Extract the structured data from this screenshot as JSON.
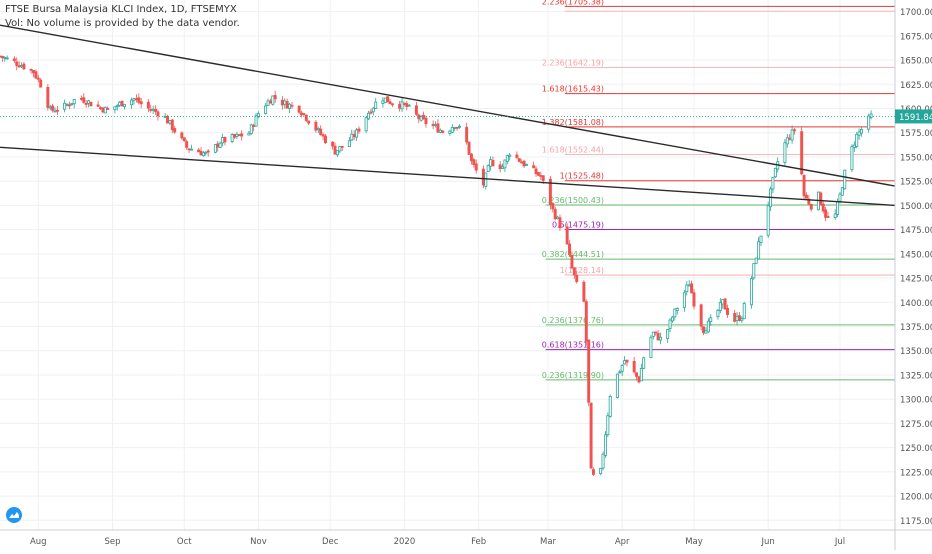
{
  "legend": {
    "title": "FTSE Bursa Malaysia KLCI Index, 1D, FTSEMYX",
    "volume_note": "Vol: No volume is provided by the data vendor."
  },
  "colors": {
    "up": "#26a69a",
    "down": "#ef5350",
    "fib_red": "#e53935",
    "fib_pink": "#f4a3a8",
    "fib_green": "#66bb6a",
    "fib_purple": "#9c27b0",
    "trendline": "#2b2b2b",
    "price_tag": "#26a69a"
  },
  "chart_data": {
    "type": "candlestick",
    "y_axis": {
      "min": 1165,
      "max": 1712,
      "ticks": [
        1175,
        1200,
        1225,
        1250,
        1275,
        1300,
        1325,
        1350,
        1375,
        1400,
        1425,
        1450,
        1475,
        1500,
        1525,
        1550,
        1575,
        1600,
        1625,
        1650,
        1675,
        1700
      ],
      "tick_labels": [
        "1175.00",
        "1200.00",
        "1225.00",
        "1250.00",
        "1275.00",
        "1300.00",
        "1325.00",
        "1350.00",
        "1375.00",
        "1400.00",
        "1425.00",
        "1450.00",
        "1475.00",
        "1500.00",
        "1525.00",
        "1550.00",
        "1575.00",
        "1600.00",
        "1625.00",
        "1650.00",
        "1675.00",
        "1700.00"
      ]
    },
    "x_axis": {
      "labels": [
        {
          "label": "Aug",
          "date": "2019-08-01"
        },
        {
          "label": "Sep",
          "date": "2019-09-01"
        },
        {
          "label": "Oct",
          "date": "2019-10-01"
        },
        {
          "label": "Nov",
          "date": "2019-11-01"
        },
        {
          "label": "Dec",
          "date": "2019-12-01"
        },
        {
          "label": "2020",
          "date": "2020-01-01"
        },
        {
          "label": "Feb",
          "date": "2020-02-01"
        },
        {
          "label": "Mar",
          "date": "2020-03-01"
        },
        {
          "label": "Apr",
          "date": "2020-04-01"
        },
        {
          "label": "May",
          "date": "2020-05-01"
        },
        {
          "label": "Jun",
          "date": "2020-06-01"
        },
        {
          "label": "Jul",
          "date": "2020-07-01"
        }
      ],
      "start_date": "2019-07-16",
      "end_date": "2020-07-24"
    },
    "grid": true,
    "current_price": {
      "value": 1591.84,
      "label": "1591.84"
    },
    "close_path": [
      {
        "date": "2019-07-16",
        "close": 1654
      },
      {
        "date": "2019-07-20",
        "close": 1650
      },
      {
        "date": "2019-07-25",
        "close": 1645
      },
      {
        "date": "2019-07-30",
        "close": 1638
      },
      {
        "date": "2019-08-02",
        "close": 1625
      },
      {
        "date": "2019-08-06",
        "close": 1598
      },
      {
        "date": "2019-08-12",
        "close": 1602
      },
      {
        "date": "2019-08-18",
        "close": 1612
      },
      {
        "date": "2019-08-24",
        "close": 1604
      },
      {
        "date": "2019-08-30",
        "close": 1598
      },
      {
        "date": "2019-09-05",
        "close": 1606
      },
      {
        "date": "2019-09-10",
        "close": 1610
      },
      {
        "date": "2019-09-16",
        "close": 1600
      },
      {
        "date": "2019-09-22",
        "close": 1594
      },
      {
        "date": "2019-09-28",
        "close": 1574
      },
      {
        "date": "2019-10-02",
        "close": 1560
      },
      {
        "date": "2019-10-07",
        "close": 1556
      },
      {
        "date": "2019-10-11",
        "close": 1552
      },
      {
        "date": "2019-10-16",
        "close": 1566
      },
      {
        "date": "2019-10-22",
        "close": 1570
      },
      {
        "date": "2019-10-28",
        "close": 1575
      },
      {
        "date": "2019-11-02",
        "close": 1600
      },
      {
        "date": "2019-11-07",
        "close": 1612
      },
      {
        "date": "2019-11-12",
        "close": 1605
      },
      {
        "date": "2019-11-18",
        "close": 1600
      },
      {
        "date": "2019-11-24",
        "close": 1582
      },
      {
        "date": "2019-11-30",
        "close": 1565
      },
      {
        "date": "2019-12-03",
        "close": 1556
      },
      {
        "date": "2019-12-07",
        "close": 1562
      },
      {
        "date": "2019-12-12",
        "close": 1575
      },
      {
        "date": "2019-12-17",
        "close": 1596
      },
      {
        "date": "2019-12-22",
        "close": 1612
      },
      {
        "date": "2019-12-27",
        "close": 1606
      },
      {
        "date": "2020-01-02",
        "close": 1602
      },
      {
        "date": "2020-01-08",
        "close": 1588
      },
      {
        "date": "2020-01-13",
        "close": 1582
      },
      {
        "date": "2020-01-18",
        "close": 1575
      },
      {
        "date": "2020-01-22",
        "close": 1584
      },
      {
        "date": "2020-01-26",
        "close": 1574
      },
      {
        "date": "2020-01-29",
        "close": 1545
      },
      {
        "date": "2020-02-03",
        "close": 1522
      },
      {
        "date": "2020-02-06",
        "close": 1545
      },
      {
        "date": "2020-02-11",
        "close": 1540
      },
      {
        "date": "2020-02-14",
        "close": 1555
      },
      {
        "date": "2020-02-19",
        "close": 1545
      },
      {
        "date": "2020-02-24",
        "close": 1535
      },
      {
        "date": "2020-02-27",
        "close": 1530
      },
      {
        "date": "2020-03-01",
        "close": 1510
      },
      {
        "date": "2020-03-03",
        "close": 1495
      },
      {
        "date": "2020-03-06",
        "close": 1480
      },
      {
        "date": "2020-03-09",
        "close": 1458
      },
      {
        "date": "2020-03-11",
        "close": 1435
      },
      {
        "date": "2020-03-13",
        "close": 1418
      },
      {
        "date": "2020-03-15",
        "close": 1440
      },
      {
        "date": "2020-03-17",
        "close": 1360
      },
      {
        "date": "2020-03-18",
        "close": 1295
      },
      {
        "date": "2020-03-19",
        "close": 1225
      },
      {
        "date": "2020-03-21",
        "close": 1215
      },
      {
        "date": "2020-03-23",
        "close": 1225
      },
      {
        "date": "2020-03-25",
        "close": 1265
      },
      {
        "date": "2020-03-27",
        "close": 1305
      },
      {
        "date": "2020-03-30",
        "close": 1325
      },
      {
        "date": "2020-04-02",
        "close": 1340
      },
      {
        "date": "2020-04-05",
        "close": 1330
      },
      {
        "date": "2020-04-08",
        "close": 1320
      },
      {
        "date": "2020-04-11",
        "close": 1355
      },
      {
        "date": "2020-04-14",
        "close": 1368
      },
      {
        "date": "2020-04-18",
        "close": 1360
      },
      {
        "date": "2020-04-22",
        "close": 1385
      },
      {
        "date": "2020-04-26",
        "close": 1405
      },
      {
        "date": "2020-04-29",
        "close": 1420
      },
      {
        "date": "2020-05-02",
        "close": 1390
      },
      {
        "date": "2020-05-05",
        "close": 1372
      },
      {
        "date": "2020-05-09",
        "close": 1383
      },
      {
        "date": "2020-05-13",
        "close": 1400
      },
      {
        "date": "2020-05-17",
        "close": 1380
      },
      {
        "date": "2020-05-21",
        "close": 1386
      },
      {
        "date": "2020-05-25",
        "close": 1425
      },
      {
        "date": "2020-05-28",
        "close": 1460
      },
      {
        "date": "2020-05-31",
        "close": 1490
      },
      {
        "date": "2020-06-03",
        "close": 1525
      },
      {
        "date": "2020-06-06",
        "close": 1555
      },
      {
        "date": "2020-06-09",
        "close": 1568
      },
      {
        "date": "2020-06-12",
        "close": 1578
      },
      {
        "date": "2020-06-14",
        "close": 1555
      },
      {
        "date": "2020-06-16",
        "close": 1510
      },
      {
        "date": "2020-06-19",
        "close": 1500
      },
      {
        "date": "2020-06-22",
        "close": 1510
      },
      {
        "date": "2020-06-25",
        "close": 1490
      },
      {
        "date": "2020-06-28",
        "close": 1480
      },
      {
        "date": "2020-07-01",
        "close": 1510
      },
      {
        "date": "2020-07-04",
        "close": 1545
      },
      {
        "date": "2020-07-08",
        "close": 1572
      },
      {
        "date": "2020-07-12",
        "close": 1585
      },
      {
        "date": "2020-07-14",
        "close": 1592
      }
    ],
    "trendlines": [
      {
        "from": {
          "date": "2019-07-16",
          "price": 1686
        },
        "to": {
          "date": "2020-07-24",
          "price": 1520
        }
      },
      {
        "from": {
          "date": "2019-07-16",
          "price": 1560
        },
        "to": {
          "date": "2020-07-24",
          "price": 1500
        }
      }
    ],
    "fib_levels": [
      {
        "label": "2.236(1705.38)",
        "price": 1705.38,
        "kind": "fib_red",
        "from": "2020-03-08"
      },
      {
        "label": "",
        "price": 1700.5,
        "kind": "fib_pink",
        "from": "2020-03-08"
      },
      {
        "label": "2.236(1642.19)",
        "price": 1642.19,
        "kind": "fib_pink",
        "from": "2020-03-08"
      },
      {
        "label": "1.618(1615.43)",
        "price": 1615.43,
        "kind": "fib_red",
        "from": "2020-03-08"
      },
      {
        "label": "1.382(1581.08)",
        "price": 1581.08,
        "kind": "fib_red",
        "from": "2020-03-08"
      },
      {
        "label": "1.618(1552.44)",
        "price": 1552.44,
        "kind": "fib_pink",
        "from": "2020-03-08"
      },
      {
        "label": "1(1525.48)",
        "price": 1525.48,
        "kind": "fib_red",
        "from": "2020-03-08"
      },
      {
        "label": "0.236(1500.43)",
        "price": 1500.43,
        "kind": "fib_green",
        "from": "2020-02-29"
      },
      {
        "label": "0.5(1475.19)",
        "price": 1475.19,
        "kind": "fib_purple",
        "from": "2020-03-08"
      },
      {
        "label": "0.382(1444.51)",
        "price": 1444.51,
        "kind": "fib_green",
        "from": "2020-02-29"
      },
      {
        "label": "1(1428.14)",
        "price": 1428.14,
        "kind": "fib_pink",
        "from": "2020-03-08"
      },
      {
        "label": "0.236(1376.76)",
        "price": 1376.76,
        "kind": "fib_green",
        "from": "2020-02-29"
      },
      {
        "label": "0.618(1351.16)",
        "price": 1351.16,
        "kind": "fib_purple",
        "from": "2020-02-29"
      },
      {
        "label": "0.236(1319.90)",
        "price": 1319.9,
        "kind": "fib_green",
        "from": "2020-02-29"
      }
    ]
  }
}
